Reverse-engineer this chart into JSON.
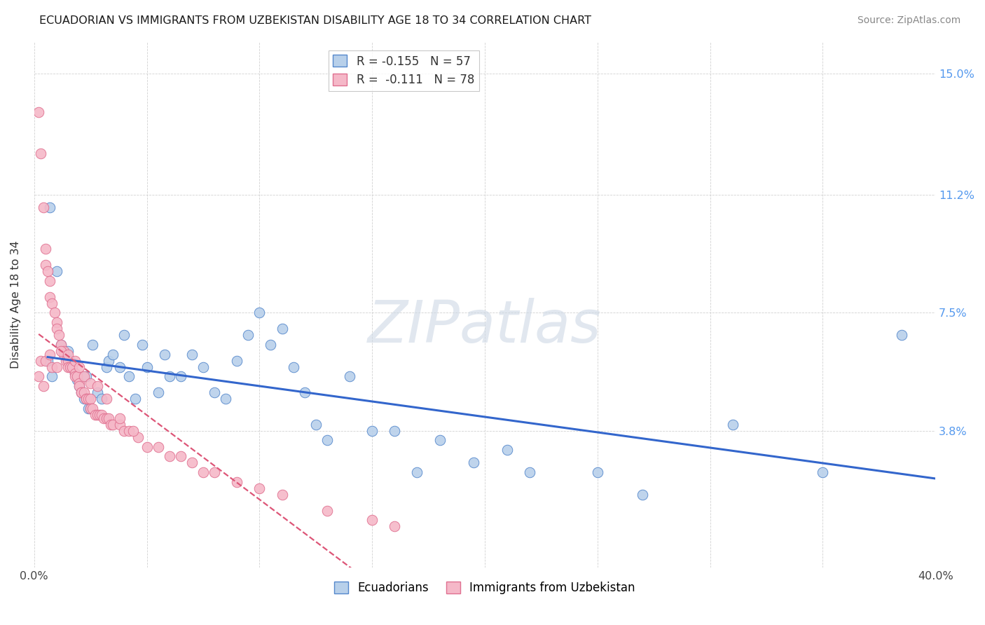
{
  "title": "ECUADORIAN VS IMMIGRANTS FROM UZBEKISTAN DISABILITY AGE 18 TO 34 CORRELATION CHART",
  "source": "Source: ZipAtlas.com",
  "ylabel": "Disability Age 18 to 34",
  "xlim": [
    0.0,
    0.4
  ],
  "ylim": [
    -0.005,
    0.16
  ],
  "xticks": [
    0.0,
    0.05,
    0.1,
    0.15,
    0.2,
    0.25,
    0.3,
    0.35,
    0.4
  ],
  "xticklabels": [
    "0.0%",
    "",
    "",
    "",
    "",
    "",
    "",
    "",
    "40.0%"
  ],
  "ytick_positions": [
    0.038,
    0.075,
    0.112,
    0.15
  ],
  "ytick_labels": [
    "3.8%",
    "7.5%",
    "11.2%",
    "15.0%"
  ],
  "legend_r_blue": "-0.155",
  "legend_n_blue": "57",
  "legend_r_pink": "-0.111",
  "legend_n_pink": "78",
  "legend_label_blue": "Ecuadorians",
  "legend_label_pink": "Immigrants from Uzbekistan",
  "blue_scatter_color": "#b8d0ea",
  "blue_edge_color": "#5588cc",
  "pink_scatter_color": "#f5b8c8",
  "pink_edge_color": "#e07090",
  "line_blue_color": "#3366cc",
  "line_pink_color": "#dd5577",
  "watermark_text": "ZIPatlas",
  "background_color": "#ffffff",
  "grid_color": "#cccccc",
  "blue_x": [
    0.006,
    0.008,
    0.012,
    0.015,
    0.016,
    0.018,
    0.019,
    0.02,
    0.021,
    0.022,
    0.023,
    0.024,
    0.025,
    0.026,
    0.028,
    0.03,
    0.032,
    0.033,
    0.035,
    0.038,
    0.04,
    0.042,
    0.045,
    0.048,
    0.05,
    0.055,
    0.058,
    0.06,
    0.065,
    0.07,
    0.075,
    0.08,
    0.085,
    0.09,
    0.095,
    0.1,
    0.105,
    0.11,
    0.115,
    0.12,
    0.125,
    0.13,
    0.14,
    0.15,
    0.16,
    0.17,
    0.18,
    0.195,
    0.21,
    0.22,
    0.25,
    0.27,
    0.31,
    0.35,
    0.385,
    0.007,
    0.01
  ],
  "blue_y": [
    0.06,
    0.055,
    0.065,
    0.063,
    0.06,
    0.056,
    0.054,
    0.052,
    0.05,
    0.048,
    0.055,
    0.045,
    0.045,
    0.065,
    0.05,
    0.048,
    0.058,
    0.06,
    0.062,
    0.058,
    0.068,
    0.055,
    0.048,
    0.065,
    0.058,
    0.05,
    0.062,
    0.055,
    0.055,
    0.062,
    0.058,
    0.05,
    0.048,
    0.06,
    0.068,
    0.075,
    0.065,
    0.07,
    0.058,
    0.05,
    0.04,
    0.035,
    0.055,
    0.038,
    0.038,
    0.025,
    0.035,
    0.028,
    0.032,
    0.025,
    0.025,
    0.018,
    0.04,
    0.025,
    0.068,
    0.108,
    0.088
  ],
  "pink_x": [
    0.002,
    0.003,
    0.004,
    0.005,
    0.005,
    0.006,
    0.007,
    0.007,
    0.008,
    0.009,
    0.01,
    0.01,
    0.011,
    0.012,
    0.013,
    0.013,
    0.014,
    0.015,
    0.015,
    0.016,
    0.017,
    0.018,
    0.018,
    0.019,
    0.02,
    0.02,
    0.021,
    0.021,
    0.022,
    0.023,
    0.023,
    0.024,
    0.025,
    0.025,
    0.026,
    0.027,
    0.028,
    0.029,
    0.03,
    0.031,
    0.032,
    0.033,
    0.034,
    0.035,
    0.038,
    0.04,
    0.042,
    0.046,
    0.05,
    0.055,
    0.06,
    0.065,
    0.07,
    0.075,
    0.08,
    0.09,
    0.1,
    0.11,
    0.13,
    0.15,
    0.16,
    0.002,
    0.003,
    0.004,
    0.005,
    0.007,
    0.008,
    0.01,
    0.012,
    0.015,
    0.018,
    0.02,
    0.022,
    0.025,
    0.028,
    0.032,
    0.038,
    0.044
  ],
  "pink_y": [
    0.138,
    0.125,
    0.108,
    0.095,
    0.09,
    0.088,
    0.085,
    0.08,
    0.078,
    0.075,
    0.072,
    0.07,
    0.068,
    0.065,
    0.063,
    0.062,
    0.06,
    0.06,
    0.058,
    0.058,
    0.058,
    0.056,
    0.055,
    0.055,
    0.053,
    0.052,
    0.05,
    0.05,
    0.05,
    0.048,
    0.048,
    0.048,
    0.048,
    0.045,
    0.045,
    0.043,
    0.043,
    0.043,
    0.043,
    0.042,
    0.042,
    0.042,
    0.04,
    0.04,
    0.04,
    0.038,
    0.038,
    0.036,
    0.033,
    0.033,
    0.03,
    0.03,
    0.028,
    0.025,
    0.025,
    0.022,
    0.02,
    0.018,
    0.013,
    0.01,
    0.008,
    0.055,
    0.06,
    0.052,
    0.06,
    0.062,
    0.058,
    0.058,
    0.063,
    0.062,
    0.06,
    0.058,
    0.055,
    0.053,
    0.052,
    0.048,
    0.042,
    0.038
  ]
}
